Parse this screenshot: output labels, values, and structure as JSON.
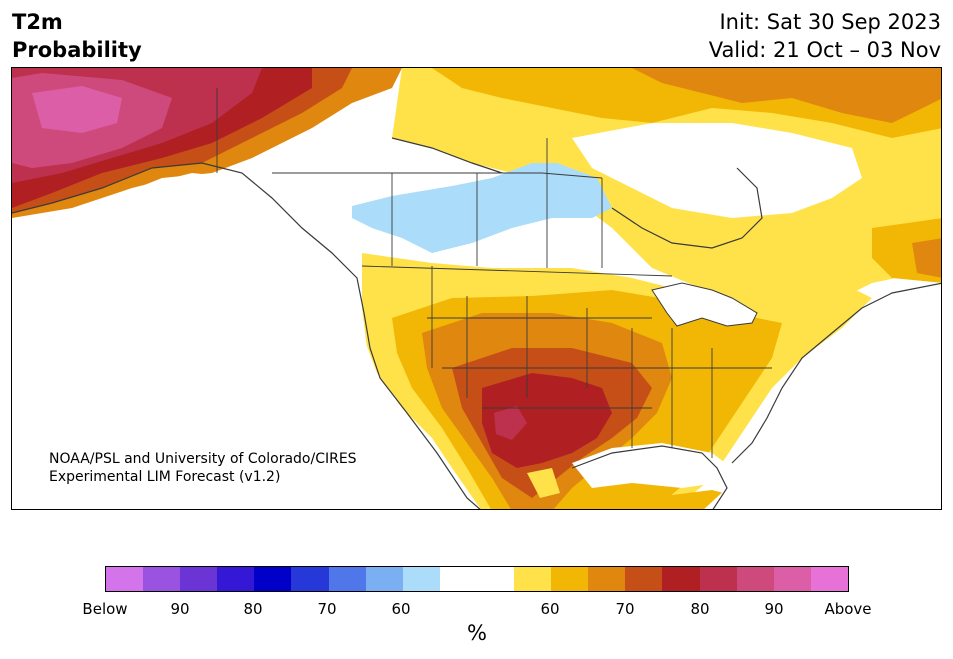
{
  "header": {
    "variable": "T2m",
    "product": "Probability",
    "init": "Init: Sat 30 Sep 2023",
    "valid": "Valid: 21 Oct – 03 Nov"
  },
  "credit": {
    "line1": "NOAA/PSL and University of Colorado/CIRES",
    "line2": "Experimental LIM Forecast (v1.2)"
  },
  "colorbar": {
    "unit": "%",
    "colors": [
      "#d374ea",
      "#9a52e0",
      "#6b35d6",
      "#3517d6",
      "#0000c8",
      "#2638d8",
      "#5077ea",
      "#7ab0f2",
      "#abdcfa",
      "#ffffff",
      "#ffffff",
      "#ffe24a",
      "#f2b705",
      "#df870e",
      "#c64f17",
      "#b02023",
      "#bd304e",
      "#cf4a7c",
      "#dc5ea6",
      "#e672d8"
    ],
    "ticks": [
      "Below",
      "90",
      "80",
      "70",
      "60",
      "60",
      "70",
      "80",
      "90",
      "Above"
    ]
  },
  "map_colors": {
    "land": "#ffffff",
    "ocean": "#ffffff",
    "boundary": "#3a3a3a"
  }
}
